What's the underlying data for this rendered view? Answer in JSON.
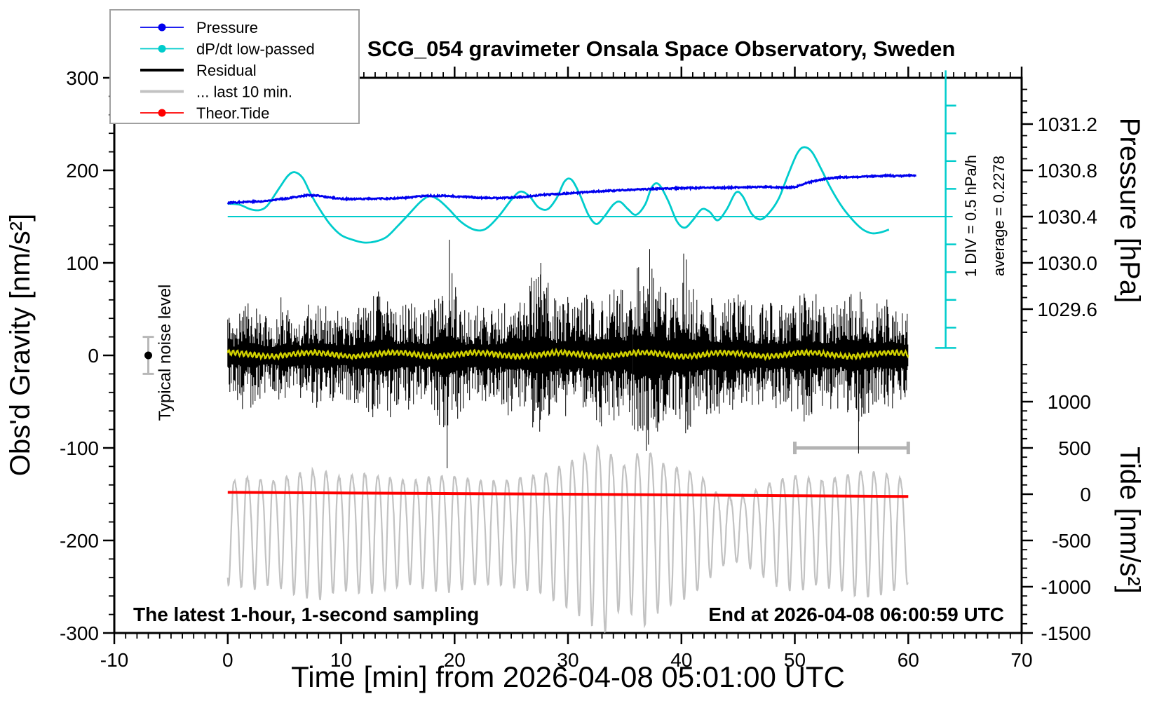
{
  "title": "SCG_054 gravimeter Onsala Space Observatory, Sweden",
  "annotations": {
    "bottom_left": "The latest 1-hour, 1-second sampling",
    "bottom_right": "End at 2026-04-08 06:00:59 UTC",
    "noise_label": "Typical noise level",
    "div_label": "1 DIV = 0.5 hPa/h",
    "average_label": "average = 0.2278"
  },
  "colors": {
    "pressure": "#0000ee",
    "dpdt": "#00cccc",
    "residual": "#000000",
    "last10": "#c2c2c2",
    "tide": "#ff0000",
    "lowpassed": "#d2d200",
    "axis": "#000000",
    "legend_border": "#a0a0a0",
    "noise_bar": "#b8b8b8",
    "span_bar": "#b3b3b3"
  },
  "legend": [
    {
      "label": "Pressure",
      "color": "#0000ee",
      "style": "line-dot"
    },
    {
      "label": "dP/dt low-passed",
      "color": "#00cccc",
      "style": "line-dot"
    },
    {
      "label": "Residual",
      "color": "#000000",
      "style": "thick-line"
    },
    {
      "label": "... last 10 min.",
      "color": "#c2c2c2",
      "style": "thick-line"
    },
    {
      "label": "Theor.Tide",
      "color": "#ff0000",
      "style": "line-dot"
    }
  ],
  "chart_data": {
    "type": "line",
    "x_axis": {
      "label": "Time [min] from 2026-04-08 05:01:00 UTC",
      "lim": [
        -10,
        70
      ],
      "major_ticks": [
        {
          "v": -10,
          "label": "-10"
        },
        {
          "v": 0,
          "label": "0"
        },
        {
          "v": 10,
          "label": "10"
        },
        {
          "v": 20,
          "label": "20"
        },
        {
          "v": 30,
          "label": "30"
        },
        {
          "v": 40,
          "label": "40"
        },
        {
          "v": 50,
          "label": "50"
        },
        {
          "v": 60,
          "label": "60"
        },
        {
          "v": 70,
          "label": "70"
        }
      ],
      "minor_step": 1
    },
    "gravity_axis": {
      "label": "Obs'd Gravity [nm/s²]",
      "lim": [
        -300,
        300
      ],
      "major_ticks": [
        {
          "v": -300,
          "label": "-300"
        },
        {
          "v": -200,
          "label": "-200"
        },
        {
          "v": -100,
          "label": "-100"
        },
        {
          "v": 0,
          "label": "0"
        },
        {
          "v": 100,
          "label": "100"
        },
        {
          "v": 200,
          "label": "200"
        },
        {
          "v": 300,
          "label": "300"
        }
      ],
      "minor_step": 20
    },
    "pressure_axis": {
      "label": "Pressure [hPa]",
      "major_ticks": [
        {
          "v": 1029.6,
          "label": "1029.6"
        },
        {
          "v": 1030.0,
          "label": "1030.0"
        },
        {
          "v": 1030.4,
          "label": "1030.4"
        },
        {
          "v": 1030.8,
          "label": "1030.8"
        },
        {
          "v": 1031.2,
          "label": "1031.2"
        }
      ],
      "minor_step": 0.1,
      "minor_range": [
        1029.4,
        1031.5
      ],
      "map": {
        "gravity_at_ref": 50,
        "ref_hpa": 1029.6,
        "gravity_per_hpa": 125
      }
    },
    "tide_axis": {
      "label": "Tide [nm/s²]",
      "major_ticks": [
        {
          "v": 1000,
          "label": "1000"
        },
        {
          "v": 500,
          "label": "500"
        },
        {
          "v": 0,
          "label": "0"
        },
        {
          "v": -500,
          "label": "-500"
        },
        {
          "v": -1000,
          "label": "-1000"
        },
        {
          "v": -1500,
          "label": "-1500"
        }
      ],
      "minor_step": 100,
      "minor_range": [
        -1500,
        1400
      ],
      "map": {
        "gravity_at_zero_tide": -150,
        "tide_per_gravity_unit": 10
      }
    },
    "series": {
      "pressure": {
        "name": "Pressure",
        "units": "hPa",
        "seed": 77,
        "points": [
          [
            0,
            1030.52
          ],
          [
            1,
            1030.525
          ],
          [
            2,
            1030.53
          ],
          [
            3,
            1030.53
          ],
          [
            4,
            1030.545
          ],
          [
            5,
            1030.555
          ],
          [
            6,
            1030.57
          ],
          [
            7,
            1030.585
          ],
          [
            8,
            1030.58
          ],
          [
            9,
            1030.565
          ],
          [
            10,
            1030.555
          ],
          [
            11,
            1030.55
          ],
          [
            12,
            1030.555
          ],
          [
            13,
            1030.555
          ],
          [
            14,
            1030.555
          ],
          [
            15,
            1030.56
          ],
          [
            16,
            1030.565
          ],
          [
            17,
            1030.575
          ],
          [
            18,
            1030.58
          ],
          [
            19,
            1030.58
          ],
          [
            20,
            1030.575
          ],
          [
            21,
            1030.57
          ],
          [
            22,
            1030.565
          ],
          [
            23,
            1030.56
          ],
          [
            24,
            1030.56
          ],
          [
            25,
            1030.565
          ],
          [
            26,
            1030.57
          ],
          [
            27,
            1030.58
          ],
          [
            28,
            1030.59
          ],
          [
            29,
            1030.595
          ],
          [
            30,
            1030.6
          ],
          [
            32,
            1030.615
          ],
          [
            34,
            1030.625
          ],
          [
            36,
            1030.635
          ],
          [
            38,
            1030.64
          ],
          [
            40,
            1030.645
          ],
          [
            42,
            1030.65
          ],
          [
            44,
            1030.65
          ],
          [
            46,
            1030.655
          ],
          [
            48,
            1030.655
          ],
          [
            49,
            1030.65
          ],
          [
            50,
            1030.655
          ],
          [
            51,
            1030.69
          ],
          [
            52,
            1030.715
          ],
          [
            53,
            1030.73
          ],
          [
            54,
            1030.74
          ],
          [
            55,
            1030.74
          ],
          [
            56,
            1030.745
          ],
          [
            57,
            1030.75
          ],
          [
            58,
            1030.755
          ],
          [
            59,
            1030.75
          ],
          [
            60,
            1030.755
          ],
          [
            60.7,
            1030.755
          ]
        ],
        "jitter_hpa": 0.012
      },
      "dpdt": {
        "name": "dP/dt low-passed",
        "units": "hPa/h",
        "zero_line_gravity": 150,
        "gravity_per_hpah": 60,
        "average": 0.2278,
        "points": [
          [
            0,
            0.233
          ],
          [
            1,
            0.217
          ],
          [
            2,
            0.133
          ],
          [
            2.8,
            0.117
          ],
          [
            3.5,
            0.2
          ],
          [
            4.5,
            0.5
          ],
          [
            5.3,
            0.733
          ],
          [
            5.9,
            0.8
          ],
          [
            6.6,
            0.7
          ],
          [
            7.3,
            0.417
          ],
          [
            8,
            0.167
          ],
          [
            9,
            -0.133
          ],
          [
            10,
            -0.333
          ],
          [
            11,
            -0.417
          ],
          [
            12,
            -0.467
          ],
          [
            13,
            -0.45
          ],
          [
            14,
            -0.367
          ],
          [
            15,
            -0.167
          ],
          [
            16,
            0.05
          ],
          [
            17,
            0.267
          ],
          [
            17.8,
            0.367
          ],
          [
            18.6,
            0.3
          ],
          [
            19.5,
            0.133
          ],
          [
            20.5,
            -0.083
          ],
          [
            21.5,
            -0.217
          ],
          [
            22.3,
            -0.25
          ],
          [
            23,
            -0.183
          ],
          [
            24,
            0.033
          ],
          [
            25,
            0.3
          ],
          [
            25.8,
            0.45
          ],
          [
            26.6,
            0.367
          ],
          [
            27.4,
            0.167
          ],
          [
            28.2,
            0.133
          ],
          [
            29,
            0.333
          ],
          [
            29.7,
            0.633
          ],
          [
            30.3,
            0.667
          ],
          [
            31,
            0.417
          ],
          [
            31.8,
            0.033
          ],
          [
            32.5,
            -0.133
          ],
          [
            33.2,
            0
          ],
          [
            34,
            0.217
          ],
          [
            34.6,
            0.267
          ],
          [
            35.3,
            0.133
          ],
          [
            36,
            0.033
          ],
          [
            36.8,
            0.217
          ],
          [
            37.4,
            0.533
          ],
          [
            38,
            0.583
          ],
          [
            38.8,
            0.3
          ],
          [
            39.6,
            -0.083
          ],
          [
            40.3,
            -0.2
          ],
          [
            41,
            -0.067
          ],
          [
            41.8,
            0.133
          ],
          [
            42.5,
            0.083
          ],
          [
            43.2,
            -0.067
          ],
          [
            44,
            0.133
          ],
          [
            44.8,
            0.433
          ],
          [
            45.4,
            0.367
          ],
          [
            46.2,
            0.05
          ],
          [
            47,
            -0.05
          ],
          [
            47.8,
            0.083
          ],
          [
            48.6,
            0.333
          ],
          [
            49.4,
            0.75
          ],
          [
            50.2,
            1.133
          ],
          [
            50.8,
            1.25
          ],
          [
            51.5,
            1.167
          ],
          [
            52.3,
            0.867
          ],
          [
            53.2,
            0.5
          ],
          [
            54.2,
            0.167
          ],
          [
            55.2,
            -0.083
          ],
          [
            56,
            -0.233
          ],
          [
            56.8,
            -0.3
          ],
          [
            57.6,
            -0.283
          ],
          [
            58.3,
            -0.233
          ]
        ]
      },
      "residual": {
        "name": "Residual",
        "units": "nm/s²",
        "seed": 12345,
        "x_range": [
          0,
          60
        ],
        "amplitude_envelope": [
          [
            0,
            40
          ],
          [
            1,
            46
          ],
          [
            2,
            60
          ],
          [
            3,
            46
          ],
          [
            4,
            40
          ],
          [
            5,
            55
          ],
          [
            6,
            50
          ],
          [
            7,
            44
          ],
          [
            8,
            60
          ],
          [
            9,
            55
          ],
          [
            10,
            46
          ],
          [
            11,
            50
          ],
          [
            12,
            60
          ],
          [
            13,
            70
          ],
          [
            14,
            75
          ],
          [
            15,
            55
          ],
          [
            16,
            60
          ],
          [
            17,
            50
          ],
          [
            18,
            58
          ],
          [
            19,
            95
          ],
          [
            20,
            80
          ],
          [
            21,
            52
          ],
          [
            22,
            56
          ],
          [
            23,
            50
          ],
          [
            24,
            55
          ],
          [
            25,
            70
          ],
          [
            26,
            60
          ],
          [
            27,
            85
          ],
          [
            28,
            90
          ],
          [
            29,
            62
          ],
          [
            30,
            70
          ],
          [
            31,
            60
          ],
          [
            32,
            70
          ],
          [
            33,
            80
          ],
          [
            34,
            75
          ],
          [
            35,
            70
          ],
          [
            36,
            95
          ],
          [
            37,
            100
          ],
          [
            38,
            85
          ],
          [
            39,
            70
          ],
          [
            40,
            90
          ],
          [
            41,
            75
          ],
          [
            42,
            70
          ],
          [
            43,
            65
          ],
          [
            44,
            60
          ],
          [
            45,
            70
          ],
          [
            46,
            60
          ],
          [
            47,
            55
          ],
          [
            48,
            62
          ],
          [
            49,
            55
          ],
          [
            50,
            66
          ],
          [
            51,
            72
          ],
          [
            52,
            56
          ],
          [
            53,
            62
          ],
          [
            54,
            56
          ],
          [
            55,
            75
          ],
          [
            56,
            70
          ],
          [
            57,
            55
          ],
          [
            58,
            62
          ],
          [
            59,
            55
          ],
          [
            60,
            50
          ]
        ],
        "spikes": [
          [
            19.35,
            -122
          ],
          [
            19.55,
            125
          ],
          [
            27.6,
            100
          ],
          [
            36.9,
            -103
          ],
          [
            37.2,
            115
          ],
          [
            40.2,
            110
          ],
          [
            55.62,
            -106
          ]
        ]
      },
      "residual_lowpassed": {
        "name": "Residual low-passed",
        "units": "nm/s²",
        "seed": 9,
        "x_range": [
          0,
          60
        ],
        "base": 1,
        "fast_amp": 2.3,
        "fast_period": 0.38,
        "slow_amp": 2,
        "slow_period": 7.3,
        "noise": 1.3
      },
      "last10": {
        "name": "... last 10 min.",
        "units": "nm/s² (displayed on gravity axis)",
        "seed": 4242,
        "x_range": [
          0,
          60
        ],
        "displayed_mean_gravity": -183,
        "period_min": 1.15,
        "amplitude_envelope": [
          [
            0,
            55
          ],
          [
            2,
            60
          ],
          [
            4,
            55
          ],
          [
            6,
            65
          ],
          [
            8,
            70
          ],
          [
            10,
            60
          ],
          [
            12,
            65
          ],
          [
            14,
            60
          ],
          [
            16,
            55
          ],
          [
            18,
            60
          ],
          [
            20,
            62
          ],
          [
            22,
            55
          ],
          [
            24,
            55
          ],
          [
            26,
            60
          ],
          [
            28,
            65
          ],
          [
            30,
            78
          ],
          [
            32,
            92
          ],
          [
            33,
            103
          ],
          [
            34,
            85
          ],
          [
            35,
            75
          ],
          [
            36,
            88
          ],
          [
            37,
            95
          ],
          [
            38,
            80
          ],
          [
            40,
            70
          ],
          [
            42,
            58
          ],
          [
            43,
            42
          ],
          [
            44,
            36
          ],
          [
            45,
            34
          ],
          [
            46,
            40
          ],
          [
            47,
            46
          ],
          [
            48,
            55
          ],
          [
            50,
            62
          ],
          [
            52,
            56
          ],
          [
            54,
            60
          ],
          [
            56,
            68
          ],
          [
            58,
            64
          ],
          [
            60,
            55
          ]
        ]
      },
      "theor_tide": {
        "name": "Theor.Tide",
        "units": "nm/s² (tide axis)",
        "points": [
          [
            0,
            20
          ],
          [
            10,
            14
          ],
          [
            20,
            7
          ],
          [
            30,
            0
          ],
          [
            40,
            -8
          ],
          [
            50,
            -17
          ],
          [
            60,
            -25
          ]
        ]
      }
    },
    "noise_marker": {
      "x_min": -7,
      "value": 0,
      "error": 20
    },
    "dpdt_scale_bar": {
      "x_min": 63.3,
      "div_gravity_units": 30,
      "div_hpah": 0.5,
      "top_gravity": 308,
      "bottom_gravity": 8,
      "ticks_gravity": [
        30,
        60,
        90,
        120,
        180,
        210,
        240,
        270
      ]
    },
    "last10_span_bar": {
      "from_min": 50,
      "to_min": 60,
      "gravity": -100
    }
  }
}
